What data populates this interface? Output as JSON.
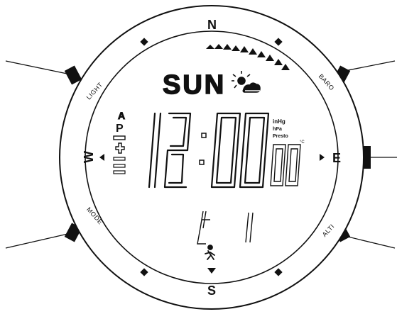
{
  "cardinals": {
    "north": "N",
    "east": "E",
    "south": "S",
    "west": "W"
  },
  "buttons": {
    "light": "LIGHT",
    "baro": "BARO",
    "mode": "MODE",
    "alti": "ALTI"
  },
  "display": {
    "day": "SUN",
    "time": "12:00",
    "seconds": "00",
    "indicators": [
      "A",
      "P",
      "−",
      "+"
    ],
    "units": [
      "inHg",
      "hPa",
      "Presto"
    ],
    "small_unit": "°C"
  },
  "icons": [
    "sun-cloud-icon",
    "runner-icon",
    "trend-arrow-icon"
  ],
  "colors": {
    "ink": "#111111",
    "background": "#ffffff"
  }
}
